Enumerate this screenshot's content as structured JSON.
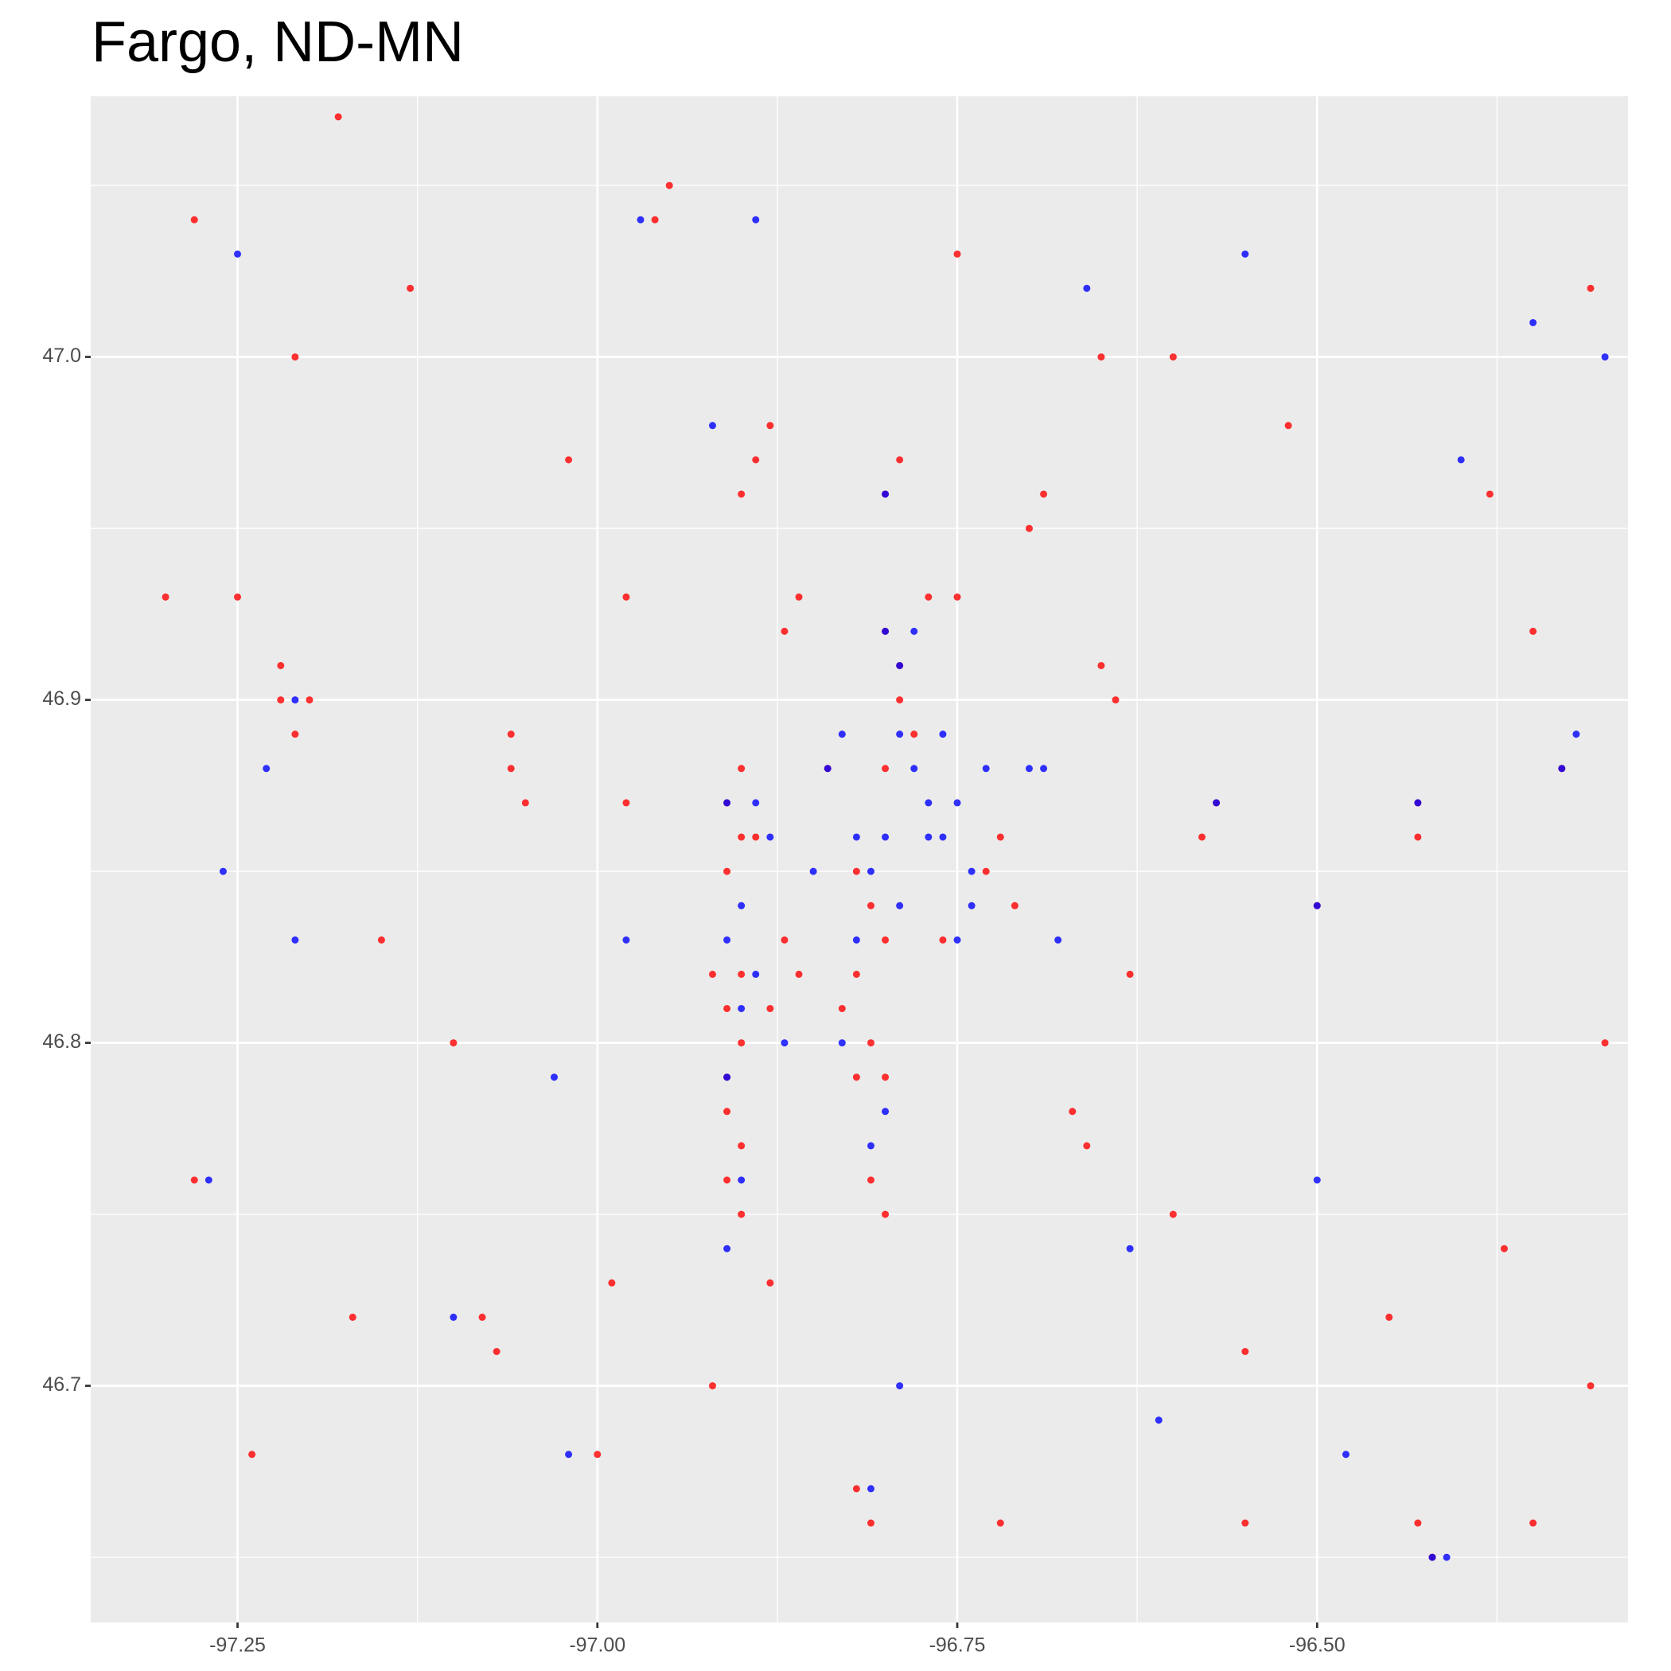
{
  "chart_data": {
    "type": "scatter",
    "title": "Fargo, ND-MN",
    "xlim": [
      -97.352,
      -96.284
    ],
    "ylim": [
      46.631,
      47.076
    ],
    "xticks": [
      -97.25,
      {
        "value": -97,
        "label": "-97.00"
      },
      -96.75,
      {
        "value": -96.5,
        "label": "-96.50"
      }
    ],
    "yticks": [
      46.7,
      46.8,
      46.9,
      {
        "value": 47,
        "label": "47.0"
      }
    ],
    "x_minor_breaks": [
      -97.125,
      -96.875,
      -96.625,
      -96.375
    ],
    "y_minor_breaks": [
      46.65,
      46.75,
      46.85,
      46.95,
      47.05
    ],
    "grid": true,
    "series": [
      {
        "color": "#ff0000",
        "x": [
          -97.28,
          -97.21,
          -97.22,
          -97.21,
          -97.2,
          -97.22,
          -97.3,
          -97.25,
          -97.15,
          -97.28,
          -97.24,
          -97.07,
          -97.08,
          -97.06,
          -97.06,
          -97.05,
          -96.98,
          -96.95,
          -96.96,
          -96.88,
          -96.89,
          -96.87,
          -96.86,
          -96.9,
          -96.91,
          -96.9,
          -96.89,
          -96.91,
          -96.9,
          -96.92,
          -96.91,
          -96.9,
          -96.88,
          -96.86,
          -96.87,
          -96.9,
          -96.91,
          -96.91,
          -96.9,
          -96.91,
          -96.9,
          -96.82,
          -96.81,
          -96.8,
          -96.82,
          -96.83,
          -96.81,
          -96.82,
          -96.8,
          -96.79,
          -96.79,
          -96.8,
          -96.78,
          -96.8,
          -96.79,
          -96.77,
          -96.75,
          -96.72,
          -96.73,
          -96.71,
          -96.76,
          -96.84,
          -96.8,
          -96.8,
          -96.81,
          -96.82,
          -96.81,
          -96.67,
          -96.66,
          -96.57,
          -96.58,
          -96.5,
          -96.43,
          -96.43,
          -96.33,
          -96.42,
          -96.43,
          -96.55,
          -96.6,
          -96.52,
          -96.6,
          -96.7,
          -96.69,
          -96.65,
          -96.64,
          -96.38,
          -96.35,
          -96.31,
          -96.37,
          -96.3,
          -96.31,
          -96.45,
          -97,
          -97.1,
          -97.18,
          -97.13,
          -97.02,
          -96.75,
          -96.65,
          -96.99,
          -97.17,
          -96.35,
          -96.55,
          -96.72,
          -96.92,
          -96.98,
          -96.88,
          -96.63
        ],
        "y": [
          47.04,
          47,
          46.9,
          46.89,
          46.9,
          46.91,
          46.93,
          46.93,
          46.83,
          46.76,
          46.68,
          46.71,
          46.72,
          46.89,
          46.88,
          46.87,
          46.93,
          47.05,
          47.04,
          46.98,
          46.97,
          46.92,
          46.93,
          46.96,
          46.87,
          46.86,
          46.86,
          46.85,
          46.88,
          46.82,
          46.81,
          46.82,
          46.81,
          46.82,
          46.83,
          46.8,
          46.79,
          46.78,
          46.77,
          46.76,
          46.75,
          46.85,
          46.84,
          46.83,
          46.82,
          46.81,
          46.8,
          46.79,
          46.79,
          46.9,
          46.91,
          46.92,
          46.89,
          46.96,
          46.97,
          46.93,
          46.93,
          46.86,
          46.85,
          46.84,
          46.83,
          46.88,
          46.88,
          46.75,
          46.76,
          46.67,
          46.66,
          46.78,
          46.77,
          46.87,
          46.86,
          46.84,
          46.87,
          46.86,
          46.88,
          46.65,
          46.66,
          46.71,
          46.75,
          46.98,
          47,
          46.95,
          46.96,
          46.91,
          46.9,
          46.96,
          46.92,
          47.02,
          46.74,
          46.8,
          46.7,
          46.72,
          46.68,
          46.8,
          47.07,
          47.02,
          46.97,
          47.03,
          47,
          46.73,
          46.72,
          46.66,
          46.66,
          46.66,
          46.7,
          46.87,
          46.73,
          46.82
        ]
      },
      {
        "color": "#0000ff",
        "x": [
          -97.25,
          -97.23,
          -97.21,
          -97.26,
          -97.27,
          -96.97,
          -96.89,
          -96.92,
          -96.91,
          -96.89,
          -96.88,
          -96.9,
          -96.91,
          -96.89,
          -96.85,
          -96.87,
          -96.9,
          -96.91,
          -96.9,
          -96.91,
          -96.82,
          -96.8,
          -96.81,
          -96.79,
          -96.82,
          -96.83,
          -96.8,
          -96.79,
          -96.8,
          -96.78,
          -96.79,
          -96.78,
          -96.76,
          -96.77,
          -96.75,
          -96.76,
          -96.74,
          -96.74,
          -96.75,
          -96.77,
          -96.84,
          -96.83,
          -96.7,
          -96.69,
          -96.73,
          -96.8,
          -96.81,
          -96.81,
          -96.57,
          -96.5,
          -96.33,
          -96.32,
          -96.42,
          -96.41,
          -96.43,
          -96.5,
          -96.55,
          -96.66,
          -96.35,
          -96.4,
          -96.3,
          -96.48,
          -96.61,
          -96.79,
          -97.02,
          -97.1,
          -97.21,
          -96.98,
          -97.03,
          -96.68,
          -96.63
        ],
        "y": [
          47.03,
          46.88,
          46.9,
          46.85,
          46.76,
          47.04,
          47.04,
          46.98,
          46.87,
          46.87,
          46.86,
          46.84,
          46.83,
          46.82,
          46.85,
          46.8,
          46.81,
          46.79,
          46.76,
          46.74,
          46.86,
          46.86,
          46.85,
          46.84,
          46.83,
          46.8,
          46.78,
          46.91,
          46.92,
          46.92,
          46.89,
          46.88,
          46.89,
          46.87,
          46.87,
          46.86,
          46.85,
          46.84,
          46.83,
          46.86,
          46.88,
          46.89,
          46.88,
          46.88,
          46.88,
          46.96,
          46.77,
          46.67,
          46.87,
          46.84,
          46.88,
          46.89,
          46.65,
          46.65,
          46.87,
          46.76,
          47.03,
          47.02,
          47.01,
          46.97,
          47,
          46.68,
          46.69,
          46.7,
          46.68,
          46.72,
          46.83,
          46.83,
          46.79,
          46.83,
          46.74
        ]
      }
    ]
  }
}
